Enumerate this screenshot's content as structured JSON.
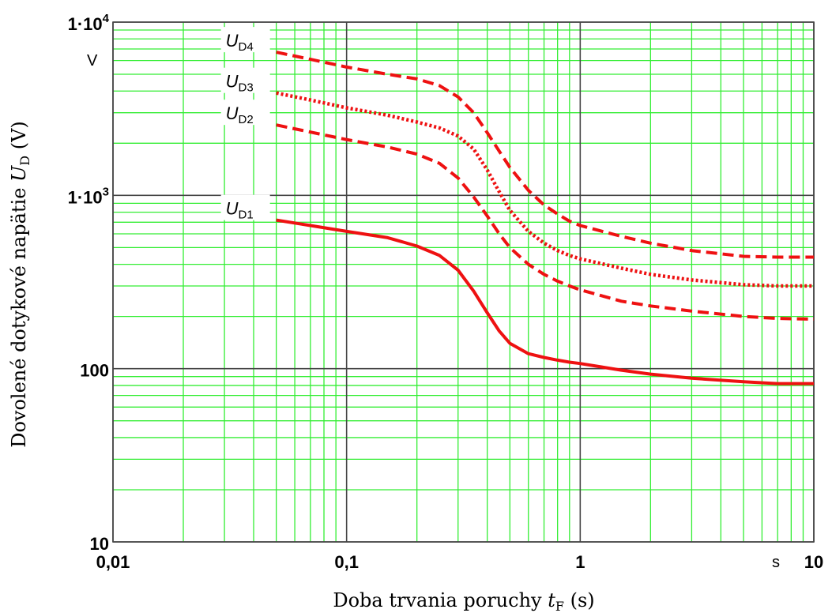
{
  "chart_data": {
    "type": "line",
    "x_scale": "log",
    "y_scale": "log",
    "xlim": [
      0.01,
      10
    ],
    "ylim": [
      10,
      10000
    ],
    "grid": true,
    "xlabel": {
      "main": "Doba trvania poruchy ",
      "var": "t",
      "sub": "F",
      "unit": " (s)"
    },
    "ylabel": {
      "main": "Dovolené dotykové napätie ",
      "var": "U",
      "sub": "D",
      "unit": " (V)"
    },
    "x_unit": "s",
    "y_unit": "V",
    "x_ticks": [
      {
        "value": 0.01,
        "label": "0,01"
      },
      {
        "value": 0.1,
        "label": "0,1"
      },
      {
        "value": 1,
        "label": "1"
      },
      {
        "value": 10,
        "label": "10"
      }
    ],
    "y_ticks": [
      {
        "value": 10,
        "label": "10"
      },
      {
        "value": 100,
        "label": "100"
      },
      {
        "value": 1000,
        "label": "1·10",
        "exp": "3"
      },
      {
        "value": 10000,
        "label": "1·10",
        "exp": "4"
      }
    ],
    "colors": {
      "grid": "#33ee33",
      "decade": "#444444",
      "series": "#ee1111"
    },
    "series": [
      {
        "name": "UD1",
        "label_main": "U",
        "label_sub": "D1",
        "style": "solid",
        "x": [
          0.05,
          0.07,
          0.1,
          0.15,
          0.2,
          0.25,
          0.3,
          0.35,
          0.4,
          0.45,
          0.5,
          0.6,
          0.7,
          0.8,
          0.9,
          1,
          1.5,
          2,
          3,
          5,
          7,
          10
        ],
        "y": [
          720,
          670,
          620,
          570,
          510,
          450,
          370,
          280,
          210,
          165,
          140,
          122,
          116,
          112,
          109,
          107,
          98,
          93,
          88,
          84,
          82,
          82
        ]
      },
      {
        "name": "UD2",
        "label_main": "U",
        "label_sub": "D2",
        "style": "dashed",
        "x": [
          0.05,
          0.07,
          0.1,
          0.15,
          0.2,
          0.25,
          0.3,
          0.35,
          0.4,
          0.45,
          0.5,
          0.6,
          0.7,
          0.8,
          0.9,
          1,
          1.5,
          2,
          3,
          5,
          7,
          10
        ],
        "y": [
          2550,
          2320,
          2100,
          1900,
          1730,
          1530,
          1260,
          980,
          760,
          600,
          500,
          400,
          350,
          320,
          300,
          285,
          245,
          230,
          215,
          200,
          195,
          193
        ]
      },
      {
        "name": "UD3",
        "label_main": "U",
        "label_sub": "D3",
        "style": "dotted",
        "x": [
          0.05,
          0.07,
          0.1,
          0.15,
          0.2,
          0.25,
          0.3,
          0.35,
          0.4,
          0.45,
          0.5,
          0.6,
          0.7,
          0.8,
          0.9,
          1,
          1.5,
          2,
          3,
          5,
          7,
          10
        ],
        "y": [
          3900,
          3550,
          3200,
          2900,
          2650,
          2450,
          2200,
          1850,
          1400,
          1050,
          820,
          620,
          530,
          480,
          450,
          430,
          380,
          350,
          325,
          305,
          300,
          300
        ]
      },
      {
        "name": "UD4",
        "label_main": "U",
        "label_sub": "D4",
        "style": "dashed",
        "x": [
          0.05,
          0.07,
          0.1,
          0.15,
          0.2,
          0.25,
          0.3,
          0.35,
          0.4,
          0.45,
          0.5,
          0.6,
          0.7,
          0.8,
          0.9,
          1,
          1.5,
          2,
          3,
          5,
          7,
          10
        ],
        "y": [
          6700,
          6100,
          5500,
          5000,
          4700,
          4300,
          3700,
          3000,
          2300,
          1800,
          1450,
          1070,
          880,
          780,
          710,
          670,
          580,
          530,
          480,
          445,
          440,
          440
        ]
      }
    ]
  }
}
